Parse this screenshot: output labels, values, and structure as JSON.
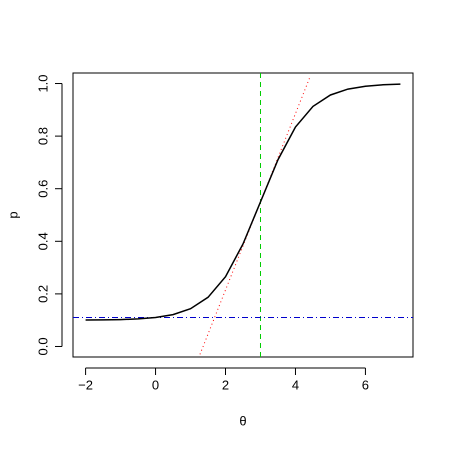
{
  "chart_data": {
    "type": "line",
    "x_label": "θ",
    "y_label": "p",
    "x": [
      -2,
      -1.5,
      -1,
      -0.5,
      0,
      0.5,
      1,
      1.5,
      2,
      2.5,
      3,
      3.5,
      4,
      4.5,
      5,
      5.5,
      6,
      6.5,
      7
    ],
    "series": [
      {
        "color": "#000000",
        "values": [
          0.1005,
          0.1011,
          0.1023,
          0.1049,
          0.1102,
          0.1212,
          0.1436,
          0.187,
          0.2654,
          0.3898,
          0.55,
          0.7102,
          0.8346,
          0.913,
          0.9564,
          0.9788,
          0.9898,
          0.9951,
          0.9977
        ]
      }
    ],
    "tangent": {
      "color": "#ff0000",
      "x": [
        1.27,
        4.43
      ],
      "y": [
        -0.03,
        1.03
      ]
    },
    "vline": {
      "color": "#00cc00",
      "x": 3
    },
    "hline": {
      "color": "#0000cc",
      "y": 0.11
    },
    "xlim": [
      -2.36,
      7.36
    ],
    "ylim": [
      -0.04,
      1.04
    ],
    "xticks": [
      {
        "value": -2,
        "label": "−2"
      },
      0,
      2,
      4,
      6
    ],
    "yticks": [
      {
        "value": 0,
        "label": "0.0"
      },
      0.2,
      0.4,
      0.6,
      0.8,
      {
        "value": 1,
        "label": "1.0"
      }
    ]
  }
}
